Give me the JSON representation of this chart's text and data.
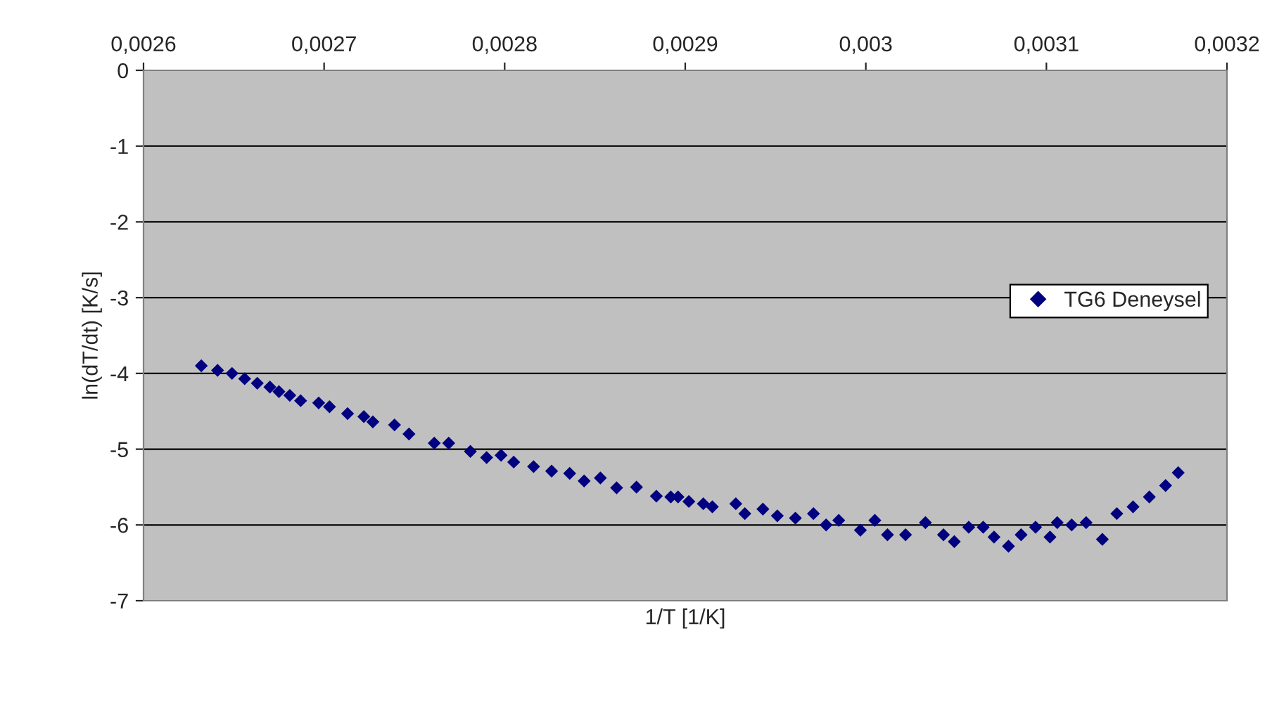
{
  "chart_data": {
    "type": "scatter",
    "xlabel": "1/T [1/K]",
    "ylabel": "ln(dT/dt) [K/s]",
    "series": [
      {
        "name": "TG6 Deneysel",
        "color": "#000080",
        "x": [
          0.002632,
          0.002641,
          0.002649,
          0.002656,
          0.002663,
          0.00267,
          0.002675,
          0.002681,
          0.002687,
          0.002697,
          0.002703,
          0.002713,
          0.002722,
          0.002727,
          0.002739,
          0.002747,
          0.002761,
          0.002769,
          0.002781,
          0.00279,
          0.002798,
          0.002805,
          0.002816,
          0.002826,
          0.002836,
          0.002844,
          0.002853,
          0.002862,
          0.002873,
          0.002884,
          0.002892,
          0.002896,
          0.002902,
          0.00291,
          0.002915,
          0.002928,
          0.002933,
          0.002943,
          0.002951,
          0.002961,
          0.002971,
          0.002978,
          0.002985,
          0.002997,
          0.003005,
          0.003012,
          0.003022,
          0.003033,
          0.003043,
          0.003049,
          0.003057,
          0.003065,
          0.003071,
          0.003079,
          0.003086,
          0.003094,
          0.003102,
          0.003106,
          0.003114,
          0.003122,
          0.003131,
          0.003139,
          0.003148,
          0.003157,
          0.003166,
          0.003173
        ],
        "values": [
          -3.9,
          -3.96,
          -4.0,
          -4.07,
          -4.13,
          -4.18,
          -4.24,
          -4.29,
          -4.36,
          -4.39,
          -4.44,
          -4.53,
          -4.57,
          -4.64,
          -4.68,
          -4.8,
          -4.92,
          -4.92,
          -5.03,
          -5.11,
          -5.08,
          -5.17,
          -5.23,
          -5.29,
          -5.32,
          -5.42,
          -5.38,
          -5.51,
          -5.5,
          -5.62,
          -5.63,
          -5.63,
          -5.69,
          -5.72,
          -5.76,
          -5.72,
          -5.85,
          -5.79,
          -5.88,
          -5.91,
          -5.85,
          -6.0,
          -5.94,
          -6.07,
          -5.94,
          -6.13,
          -6.13,
          -5.97,
          -6.13,
          -6.22,
          -6.03,
          -6.03,
          -6.16,
          -6.28,
          -6.13,
          -6.03,
          -6.16,
          -5.97,
          -6.0,
          -5.97,
          -6.19,
          -5.85,
          -5.76,
          -5.63,
          -5.48,
          -5.31
        ]
      }
    ],
    "xlim": [
      0.0026,
      0.0032
    ],
    "xticks": [
      {
        "value": 0.0026,
        "label": "0,0026"
      },
      {
        "value": 0.0027,
        "label": "0,0027"
      },
      {
        "value": 0.0028,
        "label": "0,0028"
      },
      {
        "value": 0.0029,
        "label": "0,0029"
      },
      {
        "value": 0.003,
        "label": "0,003"
      },
      {
        "value": 0.0031,
        "label": "0,0031"
      },
      {
        "value": 0.0032,
        "label": "0,0032"
      }
    ],
    "ylim": [
      -7,
      0
    ],
    "yticks": [
      -7,
      -6,
      -5,
      -4,
      -3,
      -2,
      -1,
      0
    ],
    "grid": "y",
    "legend": "right",
    "marker": "diamond"
  }
}
